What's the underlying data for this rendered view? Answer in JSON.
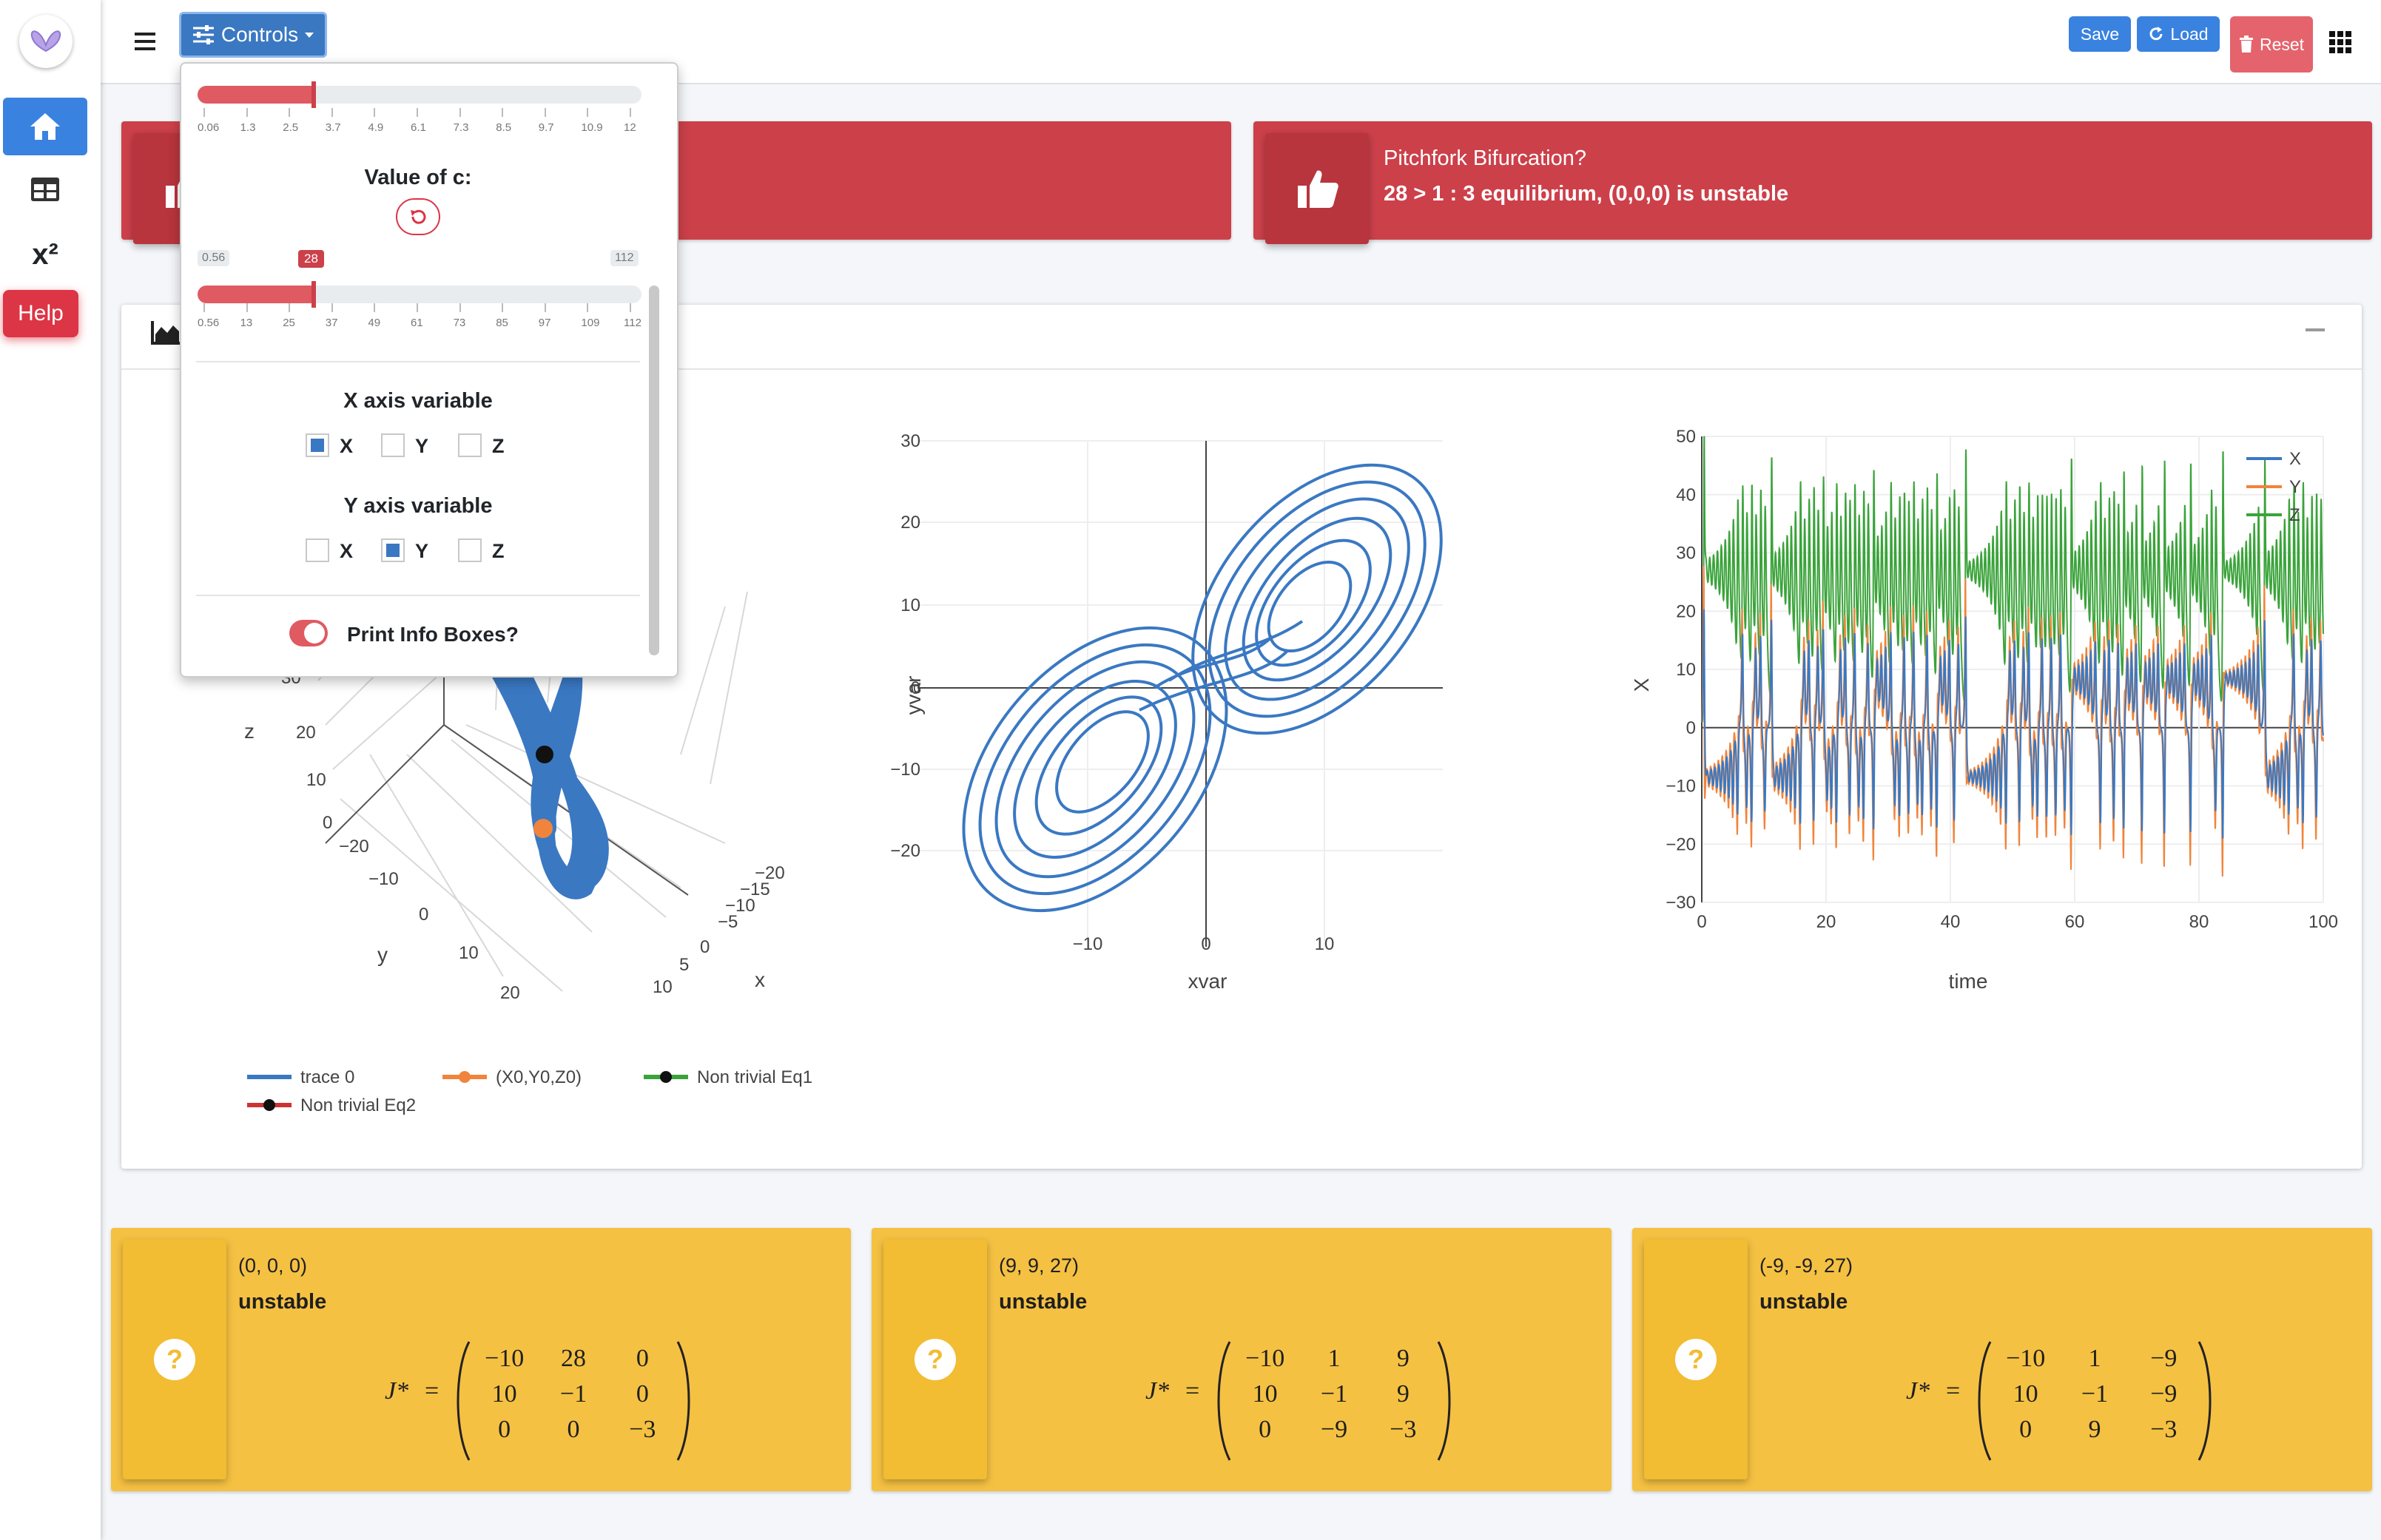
{
  "toolbar": {
    "controls_label": "Controls",
    "save_label": "Save",
    "load_label": "Load",
    "reset_label": "Reset"
  },
  "sidebar": {
    "superscript_label": "x²",
    "help_label": "Help"
  },
  "info_boxes": [
    {
      "title": "",
      "detail": ""
    },
    {
      "title": "Pitchfork Bifurcation?",
      "detail": "28 > 1 : 3 equilibrium, (0,0,0) is unstable"
    }
  ],
  "controls_panel": {
    "slider1_ticks": [
      "0.06",
      "1.3",
      "2.5",
      "3.7",
      "4.9",
      "6.1",
      "7.3",
      "8.5",
      "9.7",
      "10.9",
      "12"
    ],
    "c_label": "Value of c:",
    "c_min": "0.56",
    "c_max": "112",
    "c_value": "28",
    "c_ticks": [
      "0.56",
      "13",
      "25",
      "37",
      "49",
      "61",
      "73",
      "85",
      "97",
      "109",
      "112"
    ],
    "x_axis_label": "X axis variable",
    "y_axis_label": "Y axis variable",
    "x_options": [
      {
        "label": "X",
        "checked": true
      },
      {
        "label": "Y",
        "checked": false
      },
      {
        "label": "Z",
        "checked": false
      }
    ],
    "y_options": [
      {
        "label": "X",
        "checked": false
      },
      {
        "label": "Y",
        "checked": true
      },
      {
        "label": "Z",
        "checked": false
      }
    ],
    "print_info_label": "Print Info Boxes?",
    "print_info_on": true
  },
  "plot3d": {
    "z_label": "z",
    "y_label": "y",
    "x_label": "x",
    "z_ticks": [
      "30",
      "20",
      "10",
      "0"
    ],
    "y_ticks": [
      "−20",
      "−10",
      "0",
      "10",
      "20"
    ],
    "x_ticks": [
      "−20",
      "−15",
      "−10",
      "−5",
      "0",
      "5",
      "10"
    ],
    "legend": [
      "trace 0",
      "(X0,Y0,Z0)",
      "Non trivial Eq1",
      "Non trivial Eq2"
    ],
    "legend_colors": [
      "#3a78c2",
      "#f0843c",
      "#3aa33a",
      "#cc3333"
    ]
  },
  "chart_data": [
    {
      "type": "line",
      "xlabel": "xvar",
      "ylabel": "yvar",
      "xticks": [
        "−10",
        "0",
        "10"
      ],
      "yticks": [
        "30",
        "20",
        "10",
        "0",
        "−10",
        "−20"
      ],
      "xlim": [
        -20,
        20
      ],
      "ylim": [
        -27,
        30
      ],
      "series": [
        {
          "color": "#3a78c2"
        }
      ]
    },
    {
      "type": "line",
      "xlabel": "time",
      "ylabel": "X",
      "xticks": [
        "0",
        "20",
        "40",
        "60",
        "80",
        "100"
      ],
      "yticks": [
        "50",
        "40",
        "30",
        "20",
        "10",
        "0",
        "−10",
        "−20",
        "−30"
      ],
      "xlim": [
        0,
        100
      ],
      "ylim": [
        -30,
        50
      ],
      "series": [
        {
          "name": "X",
          "color": "#3a78c2"
        },
        {
          "name": "Y",
          "color": "#f0843c"
        },
        {
          "name": "Z",
          "color": "#3aa33a"
        }
      ]
    }
  ],
  "equilibria": [
    {
      "point": "(0, 0, 0)",
      "stability": "unstable",
      "matrix": [
        "−10",
        "28",
        "0",
        "10",
        "−1",
        "0",
        "0",
        "0",
        "−3"
      ]
    },
    {
      "point": "(9, 9, 27)",
      "stability": "unstable",
      "matrix": [
        "−10",
        "1",
        "9",
        "10",
        "−1",
        "9",
        "0",
        "−9",
        "−3"
      ]
    },
    {
      "point": "(-9, -9, 27)",
      "stability": "unstable",
      "matrix": [
        "−10",
        "1",
        "−9",
        "10",
        "−1",
        "−9",
        "0",
        "9",
        "−3"
      ]
    }
  ],
  "jacobian_symbol": "J*",
  "colors": {
    "primary": "#3a78c2",
    "danger": "#cc404a",
    "warning": "#f5c142",
    "orange": "#f0843c",
    "green": "#3aa33a"
  }
}
